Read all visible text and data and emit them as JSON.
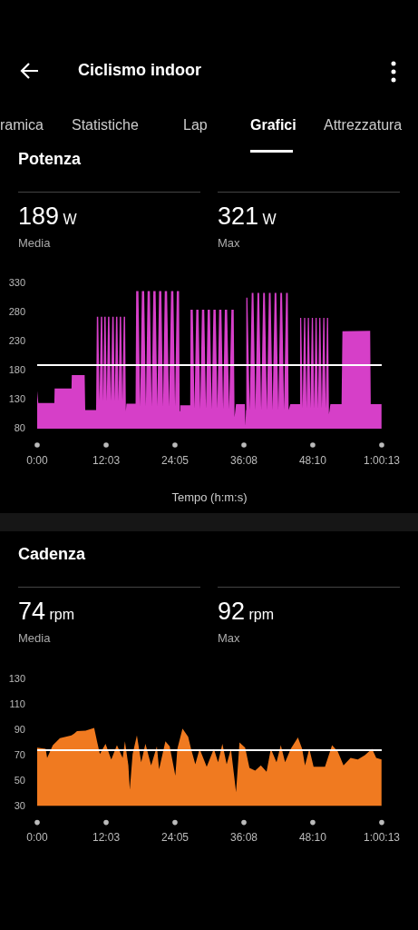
{
  "chart_data": [
    {
      "type": "area",
      "title": "Potenza",
      "xlabel": "Tempo (h:m:s)",
      "color": "#d63fc8",
      "annotations": [
        "Ciclismo indoor",
        "ramica",
        "Statistiche",
        "Lap",
        "Grafici",
        "Attrezzatura",
        "189 W",
        "Media",
        "321 W",
        "Max"
      ],
      "x": [
        0,
        0.2,
        3.0,
        3.05,
        6.0,
        6.05,
        8.3,
        8.4,
        10.3,
        10.43,
        10.67,
        10.9,
        11.13,
        11.37,
        11.55,
        11.73,
        11.97,
        12.17,
        12.38,
        12.62,
        12.87,
        13.13,
        13.37,
        13.57,
        13.78,
        14.02,
        14.22,
        14.43,
        14.67,
        14.9,
        15.13,
        15.37,
        15.5,
        15.6,
        17.2,
        17.3,
        17.7,
        18.0,
        18.3,
        18.7,
        19.0,
        19.3,
        19.7,
        20.0,
        20.3,
        20.7,
        21.0,
        21.3,
        21.7,
        22.0,
        22.3,
        22.7,
        23.05,
        23.4,
        23.8,
        24.1,
        24.4,
        24.8,
        24.9,
        25.0,
        26.75,
        26.8,
        27.2,
        27.5,
        27.8,
        28.2,
        28.5,
        28.8,
        29.2,
        29.5,
        29.8,
        30.2,
        30.5,
        30.8,
        31.2,
        31.5,
        31.8,
        32.2,
        32.5,
        32.8,
        33.2,
        33.55,
        33.95,
        34.35,
        34.5,
        34.75,
        36.3,
        36.4,
        36.5,
        36.55,
        36.75,
        37.15,
        37.5,
        37.8,
        38.15,
        38.5,
        38.8,
        39.15,
        39.5,
        39.8,
        40.15,
        40.5,
        40.8,
        41.15,
        41.5,
        41.8,
        42.15,
        42.5,
        42.8,
        43.15,
        43.5,
        43.8,
        43.95,
        44.25,
        45.9,
        45.95,
        46.15,
        46.4,
        46.65,
        46.85,
        47.08,
        47.3,
        47.5,
        47.75,
        48.0,
        48.2,
        48.43,
        48.65,
        48.85,
        49.08,
        49.3,
        49.5,
        49.75,
        50.0,
        50.2,
        50.43,
        50.65,
        50.85,
        51.0,
        51.25,
        53.2,
        53.35,
        58.2,
        58.3,
        60.1,
        60.2
      ],
      "values": [
        145,
        124,
        124,
        149,
        149,
        172,
        172,
        112,
        112,
        272,
        272,
        128,
        272,
        272,
        128,
        272,
        272,
        128,
        272,
        272,
        128,
        272,
        272,
        128,
        272,
        272,
        128,
        272,
        272,
        128,
        272,
        272,
        110,
        123,
        123,
        316,
        316,
        118,
        316,
        316,
        118,
        316,
        316,
        118,
        316,
        316,
        118,
        316,
        316,
        118,
        316,
        316,
        118,
        316,
        316,
        118,
        316,
        316,
        110,
        120,
        120,
        284,
        284,
        114,
        284,
        284,
        114,
        284,
        284,
        114,
        284,
        284,
        114,
        284,
        284,
        114,
        284,
        284,
        114,
        284,
        284,
        114,
        284,
        284,
        100,
        122,
        122,
        85,
        112,
        305,
        305,
        112,
        313,
        313,
        112,
        313,
        313,
        112,
        313,
        313,
        112,
        313,
        313,
        112,
        313,
        313,
        112,
        313,
        313,
        112,
        313,
        313,
        112,
        122,
        122,
        270,
        270,
        115,
        270,
        270,
        115,
        270,
        270,
        115,
        270,
        270,
        115,
        270,
        270,
        115,
        270,
        270,
        115,
        270,
        270,
        115,
        270,
        270,
        105,
        122,
        122,
        247,
        248,
        122,
        122,
        128
      ],
      "xlim": [
        0,
        60.2167
      ],
      "xticks": [
        {
          "value": 0,
          "label": "0:00"
        },
        {
          "value": 12.05,
          "label": "12:03"
        },
        {
          "value": 24.0833,
          "label": "24:05"
        },
        {
          "value": 36.1333,
          "label": "36:08"
        },
        {
          "value": 48.1667,
          "label": "48:10"
        },
        {
          "value": 60.2167,
          "label": "1:00:13"
        }
      ],
      "ylim": [
        80,
        330
      ],
      "yticks": [
        80,
        130,
        180,
        230,
        280,
        330
      ],
      "ref_lines": [
        {
          "axis": "y",
          "value": 189,
          "color": "#ffffff"
        }
      ]
    },
    {
      "type": "area",
      "title": "Cadenza",
      "color": "#f07a20",
      "annotations": [
        "74 rpm",
        "Media",
        "92 rpm",
        "Max"
      ],
      "x": [
        0,
        1.49,
        1.74,
        2.74,
        3.98,
        5.98,
        6.47,
        6.97,
        8.47,
        8.96,
        9.96,
        10.46,
        10.96,
        11.95,
        12.95,
        13.94,
        14.94,
        15.34,
        15.94,
        16.19,
        16.68,
        17.43,
        18.18,
        18.92,
        19.92,
        20.92,
        21.31,
        22.41,
        23.16,
        24.15,
        24.5,
        25.4,
        26.39,
        26.89,
        27.64,
        28.39,
        29.63,
        30.88,
        31.62,
        32.37,
        33.12,
        33.86,
        34.76,
        35.36,
        36.35,
        37.1,
        38.1,
        39.09,
        40.09,
        40.84,
        41.83,
        42.58,
        43.33,
        44.32,
        45.57,
        46.31,
        46.81,
        47.56,
        48.31,
        49.3,
        50.3,
        51.54,
        52.54,
        53.54,
        54.78,
        56.03,
        57.27,
        58.52,
        59.26,
        60.2
      ],
      "values": [
        76,
        75,
        68,
        78,
        83.5,
        85.6,
        87,
        89,
        89.4,
        90,
        91.5,
        81,
        71,
        79,
        66.6,
        78,
        68,
        81,
        62,
        43,
        71,
        85.6,
        64.5,
        79,
        62,
        77,
        59,
        81,
        77,
        54,
        75,
        91,
        84.5,
        75,
        63,
        75,
        61,
        75,
        64.5,
        79,
        63,
        75,
        41,
        80,
        76,
        60,
        58,
        62,
        57,
        75,
        64.5,
        78,
        64.5,
        75,
        84,
        75,
        62,
        75,
        61,
        61,
        61,
        78,
        73,
        62,
        68,
        66.6,
        70,
        75,
        68,
        66.6
      ],
      "xlim": [
        0,
        60.2167
      ],
      "xticks": [
        {
          "value": 0,
          "label": "0:00"
        },
        {
          "value": 12.05,
          "label": "12:03"
        },
        {
          "value": 24.0833,
          "label": "24:05"
        },
        {
          "value": 36.1333,
          "label": "36:08"
        },
        {
          "value": 48.1667,
          "label": "48:10"
        },
        {
          "value": 60.2167,
          "label": "1:00:13"
        }
      ],
      "ylim": [
        30,
        130
      ],
      "yticks": [
        30,
        50,
        70,
        90,
        110,
        130
      ],
      "ref_lines": [
        {
          "axis": "y",
          "value": 74,
          "color": "#ffffff"
        }
      ]
    }
  ]
}
